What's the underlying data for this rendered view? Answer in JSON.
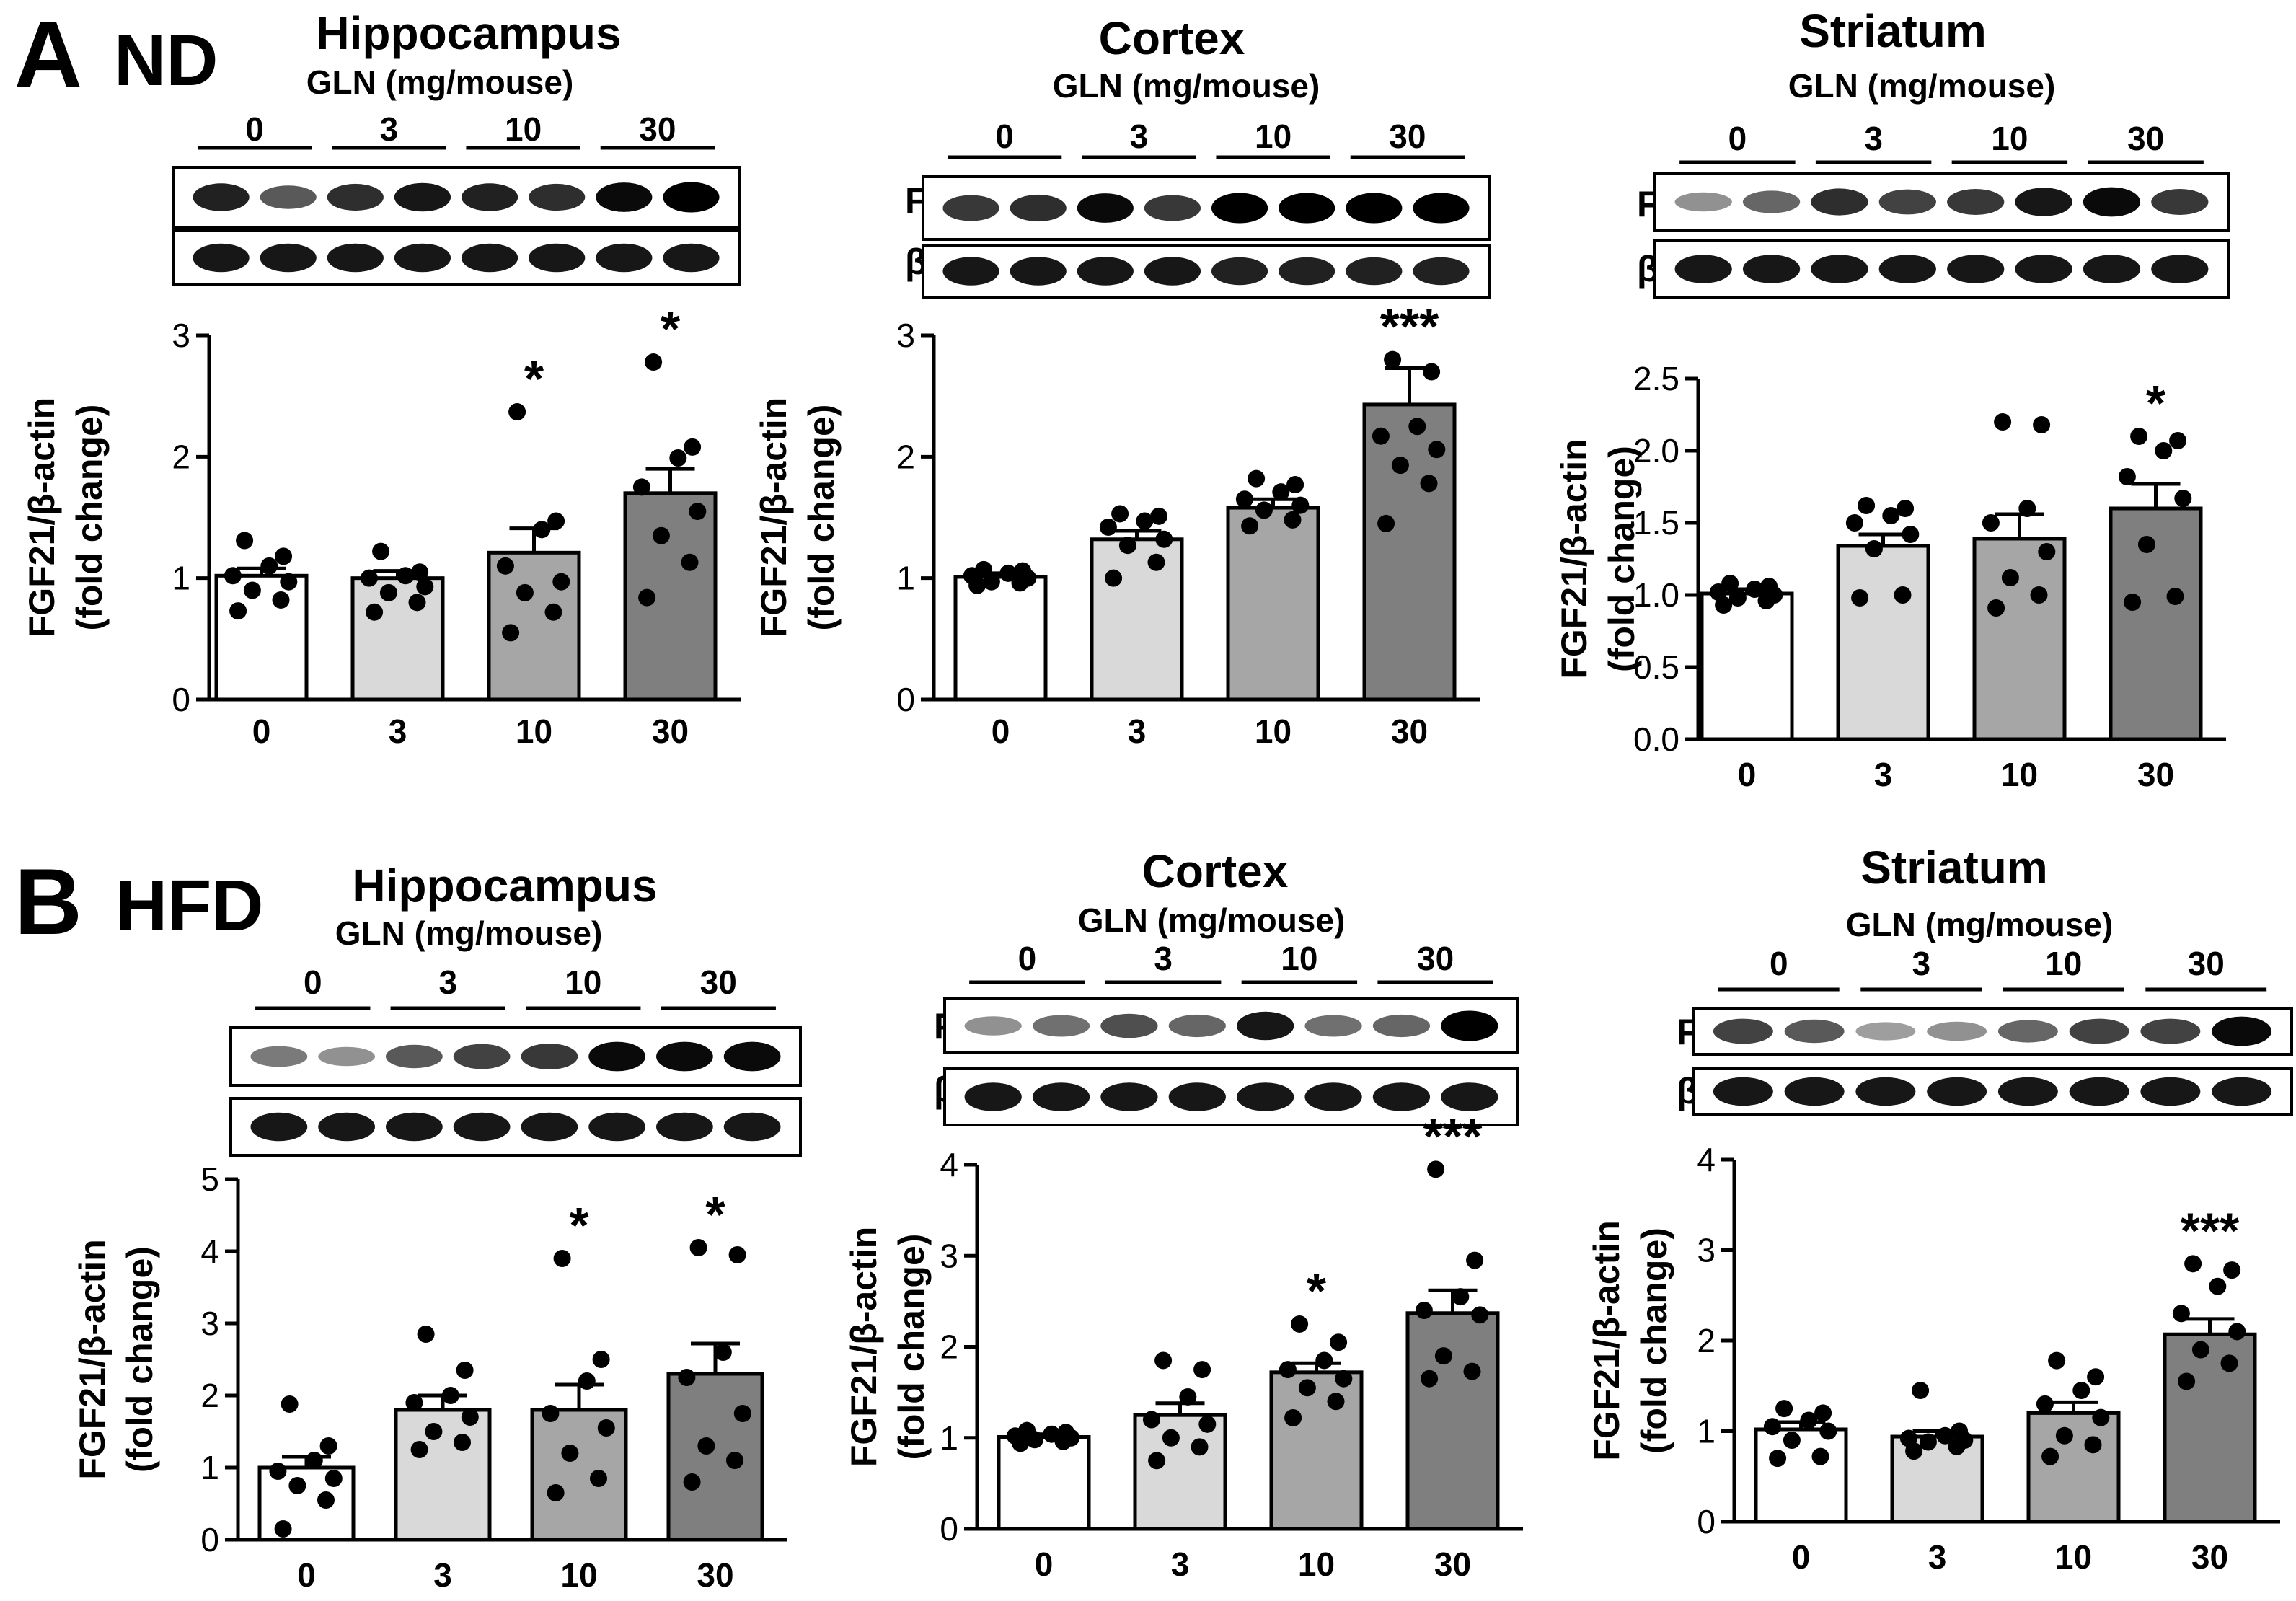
{
  "chart_data": [
    {
      "type": "bar",
      "row": "A",
      "diet": "ND",
      "title": "Hippocampus",
      "xlabel": "GLN (mg/mouse)",
      "ylabel": [
        "FGF21/β-actin",
        "(fold change)"
      ],
      "categories": [
        "0",
        "3",
        "10",
        "30"
      ],
      "values": [
        1.02,
        1.0,
        1.21,
        1.7
      ],
      "errors": [
        0.06,
        0.06,
        0.2,
        0.2
      ],
      "points": [
        [
          0.73,
          0.82,
          0.9,
          0.97,
          1.02,
          1.1,
          1.18,
          1.31
        ],
        [
          0.72,
          0.8,
          0.88,
          0.93,
          1.0,
          1.02,
          1.05,
          1.22
        ],
        [
          0.55,
          0.72,
          0.88,
          0.97,
          1.1,
          1.4,
          1.47,
          2.37
        ],
        [
          0.84,
          1.13,
          1.35,
          1.55,
          1.75,
          1.99,
          2.08,
          2.78
        ]
      ],
      "significance": [
        "",
        "",
        "*",
        "*"
      ],
      "ylim": [
        0,
        3
      ],
      "yticks": [
        "0",
        "1",
        "2",
        "3"
      ],
      "blot_labels": [
        "FGF21",
        "β-actin"
      ]
    },
    {
      "type": "bar",
      "row": "A",
      "diet": "ND",
      "title": "Cortex",
      "xlabel": "GLN (mg/mouse)",
      "ylabel": [
        "FGF21/β-actin",
        "(fold change)"
      ],
      "categories": [
        "0",
        "3",
        "10",
        "30"
      ],
      "values": [
        1.01,
        1.32,
        1.58,
        2.43
      ],
      "errors": [
        0.03,
        0.07,
        0.07,
        0.3
      ],
      "points": [
        [
          0.94,
          0.96,
          0.97,
          1.0,
          1.02,
          1.04,
          1.06,
          1.07
        ],
        [
          1.0,
          1.13,
          1.27,
          1.32,
          1.42,
          1.47,
          1.51,
          1.53
        ],
        [
          1.43,
          1.48,
          1.56,
          1.6,
          1.65,
          1.71,
          1.77,
          1.82
        ],
        [
          1.45,
          1.78,
          1.93,
          2.06,
          2.17,
          2.25,
          2.7,
          2.8
        ]
      ],
      "significance": [
        "",
        "",
        "",
        "***"
      ],
      "ylim": [
        0,
        3
      ],
      "yticks": [
        "0",
        "1",
        "2",
        "3"
      ],
      "blot_labels": [
        "FGF21",
        "β-actin"
      ]
    },
    {
      "type": "bar",
      "row": "A",
      "diet": "ND",
      "title": "Striatum",
      "xlabel": "GLN (mg/mouse)",
      "ylabel": [
        "FGF21/β-actin",
        "(fold change)"
      ],
      "categories": [
        "0",
        "3",
        "10",
        "30"
      ],
      "values": [
        1.01,
        1.34,
        1.39,
        1.6
      ],
      "errors": [
        0.03,
        0.08,
        0.17,
        0.17
      ],
      "points": [
        [
          0.93,
          0.96,
          0.98,
          1.0,
          1.02,
          1.04,
          1.06,
          1.08
        ],
        [
          0.98,
          1.0,
          1.32,
          1.42,
          1.5,
          1.55,
          1.6,
          1.62
        ],
        [
          0.91,
          1.0,
          1.12,
          1.3,
          1.5,
          1.6,
          2.18,
          2.2
        ],
        [
          0.95,
          0.99,
          1.35,
          1.67,
          1.82,
          2.0,
          2.07,
          2.1
        ]
      ],
      "significance": [
        "",
        "",
        "",
        "*"
      ],
      "ylim": [
        0,
        2.5
      ],
      "yticks": [
        "0.0",
        "0.5",
        "1.0",
        "1.5",
        "2.0",
        "2.5"
      ],
      "blot_labels": [
        "FGF21",
        "β-actin"
      ]
    },
    {
      "type": "bar",
      "row": "B",
      "diet": "HFD",
      "title": "Hippocampus",
      "xlabel": "GLN (mg/mouse)",
      "ylabel": [
        "FGF21/β-actin",
        "(fold change)"
      ],
      "categories": [
        "0",
        "3",
        "10",
        "30"
      ],
      "values": [
        1.0,
        1.8,
        1.8,
        2.3
      ],
      "errors": [
        0.15,
        0.2,
        0.35,
        0.42
      ],
      "points": [
        [
          0.15,
          0.55,
          0.75,
          0.85,
          0.95,
          1.1,
          1.3,
          1.88
        ],
        [
          1.25,
          1.35,
          1.5,
          1.7,
          1.9,
          2.0,
          2.35,
          2.85
        ],
        [
          0.65,
          0.85,
          1.2,
          1.55,
          1.75,
          2.2,
          2.5,
          3.9
        ],
        [
          0.8,
          1.1,
          1.3,
          1.75,
          2.25,
          2.6,
          3.95,
          4.05
        ]
      ],
      "significance": [
        "",
        "",
        "*",
        "*"
      ],
      "ylim": [
        0,
        5
      ],
      "yticks": [
        "0",
        "1",
        "2",
        "3",
        "4",
        "5"
      ],
      "blot_labels": [
        "FGF21",
        "β-actin"
      ]
    },
    {
      "type": "bar",
      "row": "B",
      "diet": "HFD",
      "title": "Cortex",
      "xlabel": "GLN (mg/mouse)",
      "ylabel": [
        "FGF21/β-actin",
        "(fold change)"
      ],
      "categories": [
        "0",
        "3",
        "10",
        "30"
      ],
      "values": [
        1.01,
        1.25,
        1.72,
        2.37
      ],
      "errors": [
        0.03,
        0.13,
        0.1,
        0.25
      ],
      "points": [
        [
          0.94,
          0.96,
          0.98,
          1.0,
          1.02,
          1.04,
          1.06,
          1.08
        ],
        [
          0.75,
          0.9,
          1.0,
          1.15,
          1.2,
          1.45,
          1.75,
          1.85
        ],
        [
          1.22,
          1.4,
          1.55,
          1.65,
          1.75,
          1.85,
          2.05,
          2.25
        ],
        [
          1.65,
          1.73,
          1.9,
          2.35,
          2.4,
          2.55,
          2.95,
          3.95
        ]
      ],
      "significance": [
        "",
        "",
        "*",
        "***"
      ],
      "ylim": [
        0,
        4
      ],
      "yticks": [
        "0",
        "1",
        "2",
        "3",
        "4"
      ],
      "blot_labels": [
        "FGF21",
        "β-actin"
      ]
    },
    {
      "type": "bar",
      "row": "B",
      "diet": "HFD",
      "title": "Striatum",
      "xlabel": "GLN (mg/mouse)",
      "ylabel": [
        "FGF21/β-actin",
        "(fold change)"
      ],
      "categories": [
        "0",
        "3",
        "10",
        "30"
      ],
      "values": [
        1.02,
        0.94,
        1.2,
        2.07
      ],
      "errors": [
        0.08,
        0.06,
        0.12,
        0.17
      ],
      "points": [
        [
          0.7,
          0.72,
          0.9,
          1.0,
          1.05,
          1.12,
          1.2,
          1.25
        ],
        [
          0.78,
          0.83,
          0.88,
          0.9,
          0.92,
          0.95,
          1.0,
          1.45
        ],
        [
          0.72,
          0.85,
          0.95,
          1.15,
          1.3,
          1.45,
          1.6,
          1.78
        ],
        [
          1.55,
          1.75,
          1.9,
          2.1,
          2.3,
          2.6,
          2.78,
          2.85
        ]
      ],
      "significance": [
        "",
        "",
        "",
        "***"
      ],
      "ylim": [
        0,
        4
      ],
      "yticks": [
        "0",
        "1",
        "2",
        "3",
        "4"
      ],
      "blot_labels": [
        "FGF21",
        "β-actin"
      ]
    }
  ],
  "bar_colors": [
    "#ffffff",
    "#d9d9d9",
    "#a6a6a6",
    "#7f7f7f"
  ],
  "blots": [
    {
      "fgf21": [
        0.85,
        0.6,
        0.8,
        0.9,
        0.85,
        0.8,
        0.95,
        1.0
      ],
      "actin": [
        0.9,
        0.9,
        0.9,
        0.9,
        0.9,
        0.9,
        0.9,
        0.9
      ]
    },
    {
      "fgf21": [
        0.75,
        0.8,
        0.95,
        0.75,
        1.0,
        1.0,
        1.0,
        1.0
      ],
      "actin": [
        0.9,
        0.9,
        0.9,
        0.9,
        0.85,
        0.85,
        0.85,
        0.85
      ]
    },
    {
      "fgf21": [
        0.35,
        0.55,
        0.8,
        0.7,
        0.75,
        0.9,
        0.95,
        0.75
      ],
      "actin": [
        0.9,
        0.9,
        0.9,
        0.9,
        0.9,
        0.9,
        0.9,
        0.9
      ]
    },
    {
      "fgf21": [
        0.45,
        0.35,
        0.6,
        0.7,
        0.75,
        0.95,
        0.95,
        0.95
      ],
      "actin": [
        0.9,
        0.9,
        0.9,
        0.9,
        0.9,
        0.9,
        0.9,
        0.9
      ]
    },
    {
      "fgf21": [
        0.35,
        0.5,
        0.65,
        0.55,
        0.9,
        0.5,
        0.55,
        1.0
      ],
      "actin": [
        0.9,
        0.9,
        0.9,
        0.9,
        0.9,
        0.9,
        0.9,
        0.9
      ]
    },
    {
      "fgf21": [
        0.7,
        0.6,
        0.3,
        0.35,
        0.55,
        0.7,
        0.7,
        0.95
      ],
      "actin": [
        0.9,
        0.9,
        0.9,
        0.9,
        0.9,
        0.9,
        0.9,
        0.9
      ]
    }
  ],
  "panel_letters": [
    "A",
    "B"
  ],
  "diet_labels": [
    "ND",
    "HFD"
  ]
}
